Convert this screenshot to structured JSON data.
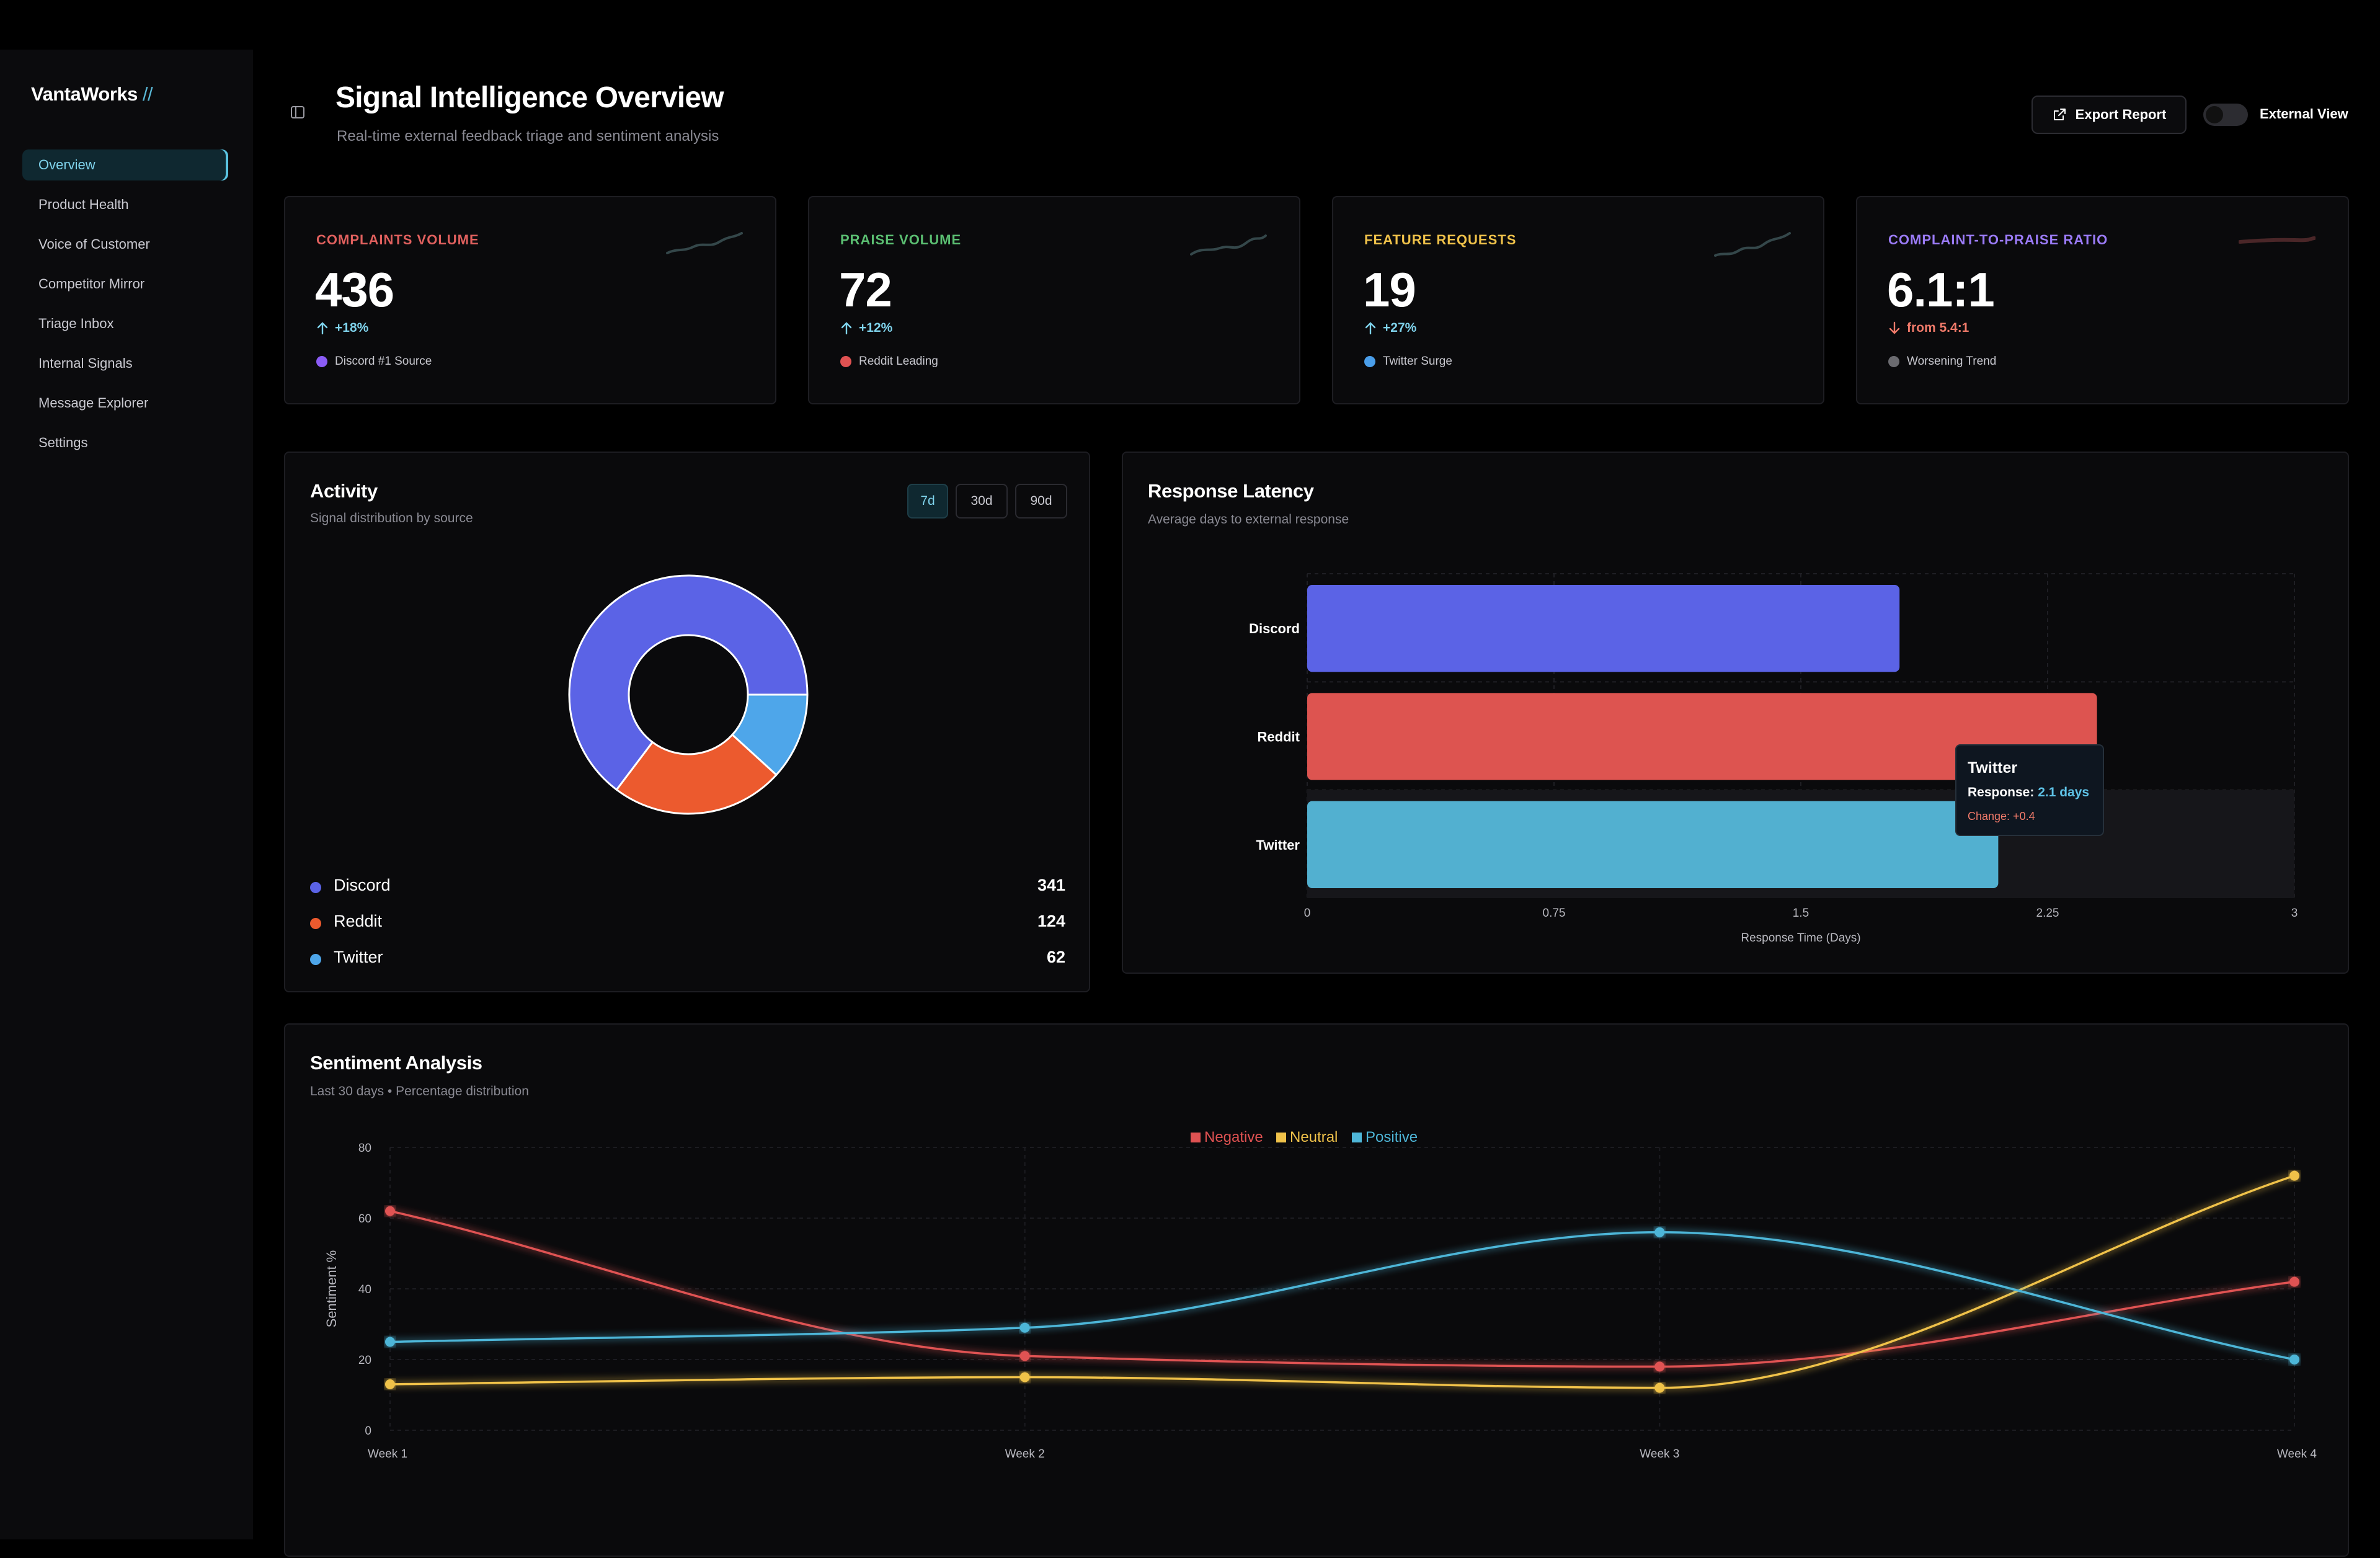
{
  "app": {
    "logo": "VantaWorks",
    "logo_mark": "//"
  },
  "sidebar": {
    "items": [
      {
        "label": "Overview",
        "active": true
      },
      {
        "label": "Product Health"
      },
      {
        "label": "Voice of Customer"
      },
      {
        "label": "Competitor Mirror"
      },
      {
        "label": "Triage Inbox"
      },
      {
        "label": "Internal Signals"
      },
      {
        "label": "Message Explorer"
      },
      {
        "label": "Settings"
      }
    ]
  },
  "header": {
    "title": "Signal Intelligence Overview",
    "subtitle": "Real-time external feedback triage and sentiment analysis",
    "export_label": "Export Report",
    "toggle_label": "External View",
    "toggle_on": false
  },
  "kpis": [
    {
      "label": "COMPLAINTS VOLUME",
      "value": "436",
      "delta": "+18%",
      "direction": "up",
      "footnote": "Discord #1 Source",
      "label_color": "#e0605e",
      "dot_color": "#8b5cf6",
      "delta_color": "#7fd3ec",
      "spark_color": "#2f3f42"
    },
    {
      "label": "PRAISE VOLUME",
      "value": "72",
      "delta": "+12%",
      "direction": "up",
      "footnote": "Reddit Leading",
      "label_color": "#5bbf72",
      "dot_color": "#e05252",
      "delta_color": "#7fd3ec",
      "spark_color": "#2f3f42"
    },
    {
      "label": "FEATURE REQUESTS",
      "value": "19",
      "delta": "+27%",
      "direction": "up",
      "footnote": "Twitter Surge",
      "label_color": "#f0c24a",
      "dot_color": "#4a9eea",
      "delta_color": "#7fd3ec",
      "spark_color": "#2f3f42"
    },
    {
      "label": "COMPLAINT-TO-PRAISE RATIO",
      "value": "6.1:1",
      "delta": "from 5.4:1",
      "direction": "down",
      "footnote": "Worsening Trend",
      "label_color": "#9b7bf7",
      "dot_color": "#6b6b70",
      "delta_color": "#f07a6a",
      "spark_color": "#4a2628"
    }
  ],
  "activity": {
    "title": "Activity",
    "subtitle": "Signal distribution by source",
    "ranges": [
      "7d",
      "30d",
      "90d"
    ],
    "active_range": "7d",
    "sources": [
      {
        "name": "Discord",
        "value": 341,
        "color": "#5b63e6"
      },
      {
        "name": "Reddit",
        "value": 124,
        "color": "#ec5a2e"
      },
      {
        "name": "Twitter",
        "value": 62,
        "color": "#4ea6ea"
      }
    ]
  },
  "latency": {
    "title": "Response Latency",
    "subtitle": "Average days to external response",
    "tooltip": {
      "title": "Twitter",
      "label": "Response:",
      "value": "2.1 days",
      "change": "Change: +0.4"
    }
  },
  "sentiment": {
    "title": "Sentiment Analysis",
    "subtitle": "Last 30 days • Percentage distribution"
  },
  "chart_data": [
    {
      "type": "pie",
      "title": "Activity",
      "categories": [
        "Discord",
        "Reddit",
        "Twitter"
      ],
      "values": [
        341,
        124,
        62
      ],
      "colors": [
        "#5b63e6",
        "#ec5a2e",
        "#4ea6ea"
      ]
    },
    {
      "type": "bar",
      "orientation": "horizontal",
      "title": "Response Latency",
      "categories": [
        "Discord",
        "Reddit",
        "Twitter"
      ],
      "values": [
        1.8,
        2.4,
        2.1
      ],
      "colors": [
        "#5b63e6",
        "#dd5450",
        "#52b0d0"
      ],
      "xlabel": "Response Time (Days)",
      "xlim": [
        0,
        3
      ],
      "xticks": [
        "0",
        "0.75",
        "1.5",
        "2.25",
        "3"
      ]
    },
    {
      "type": "line",
      "title": "Sentiment Analysis",
      "categories": [
        "Week 1",
        "Week 2",
        "Week 3",
        "Week 4"
      ],
      "series": [
        {
          "name": "Negative",
          "values": [
            62,
            21,
            18,
            42
          ],
          "color": "#e05252"
        },
        {
          "name": "Neutral",
          "values": [
            13,
            15,
            12,
            72
          ],
          "color": "#f0c24a"
        },
        {
          "name": "Positive",
          "values": [
            25,
            29,
            56,
            20
          ],
          "color": "#4eb6d8"
        }
      ],
      "ylabel": "Sentiment %",
      "ylim": [
        0,
        80
      ],
      "yticks": [
        "0",
        "20",
        "40",
        "60",
        "80"
      ]
    }
  ]
}
